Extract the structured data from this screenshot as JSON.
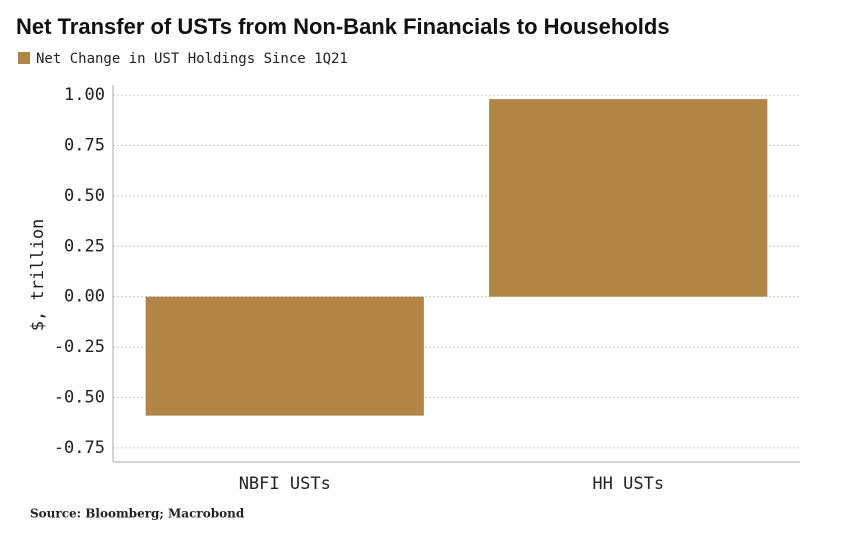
{
  "chart_data": {
    "type": "bar",
    "title": "Net Transfer of USTs from Non-Bank Financials to Households",
    "y_label": "$, trillion",
    "source": "Source: Bloomberg; Macrobond",
    "categories": [
      "NBFI USTs",
      "HH USTs"
    ],
    "series": [
      {
        "name": "Net Change in UST Holdings Since 1Q21",
        "color": "#b08545",
        "values": [
          -0.59,
          0.98
        ]
      }
    ],
    "ylim": [
      -0.82,
      1.05
    ],
    "yticks": [
      {
        "value": 1,
        "label": "1.00"
      },
      0.75,
      {
        "value": 0.5,
        "label": "0.50"
      },
      0.25,
      {
        "value": 0,
        "label": "0.00"
      },
      -0.25,
      {
        "value": -0.5,
        "label": "-0.50"
      },
      -0.75
    ],
    "grid": true
  }
}
